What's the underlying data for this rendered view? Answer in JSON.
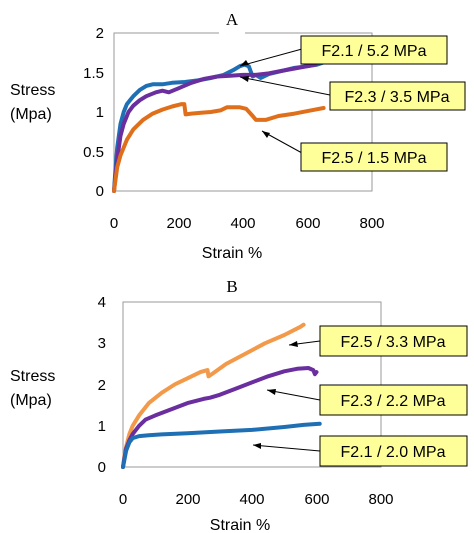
{
  "chart_data": [
    {
      "type": "line",
      "title": "A",
      "xlabel": "Strain %",
      "ylabel": [
        "Stress",
        "(Mpa)"
      ],
      "xlim": [
        0,
        800
      ],
      "ylim": [
        0,
        2
      ],
      "xticks": [
        "0",
        "200",
        "400",
        "600",
        "800"
      ],
      "yticks": [
        "0",
        "0.5",
        "1",
        "1.5",
        "2"
      ],
      "grid": false,
      "series": [
        {
          "name": "F2.1 / 5.2 MPa",
          "color": "#1f6fb4",
          "points": [
            [
              0,
              0
            ],
            [
              5,
              0.3
            ],
            [
              10,
              0.55
            ],
            [
              20,
              0.85
            ],
            [
              30,
              1.0
            ],
            [
              40,
              1.1
            ],
            [
              60,
              1.2
            ],
            [
              80,
              1.28
            ],
            [
              100,
              1.33
            ],
            [
              120,
              1.35
            ],
            [
              150,
              1.35
            ],
            [
              180,
              1.37
            ],
            [
              220,
              1.38
            ],
            [
              260,
              1.4
            ],
            [
              300,
              1.43
            ],
            [
              340,
              1.47
            ],
            [
              370,
              1.53
            ],
            [
              390,
              1.58
            ],
            [
              405,
              1.6
            ],
            [
              418,
              1.58
            ],
            [
              425,
              1.5
            ],
            [
              430,
              1.45
            ],
            [
              440,
              1.47
            ],
            [
              455,
              1.43
            ],
            [
              480,
              1.48
            ],
            [
              520,
              1.52
            ],
            [
              560,
              1.56
            ],
            [
              600,
              1.58
            ],
            [
              630,
              1.6
            ],
            [
              645,
              1.62
            ]
          ]
        },
        {
          "name": "F2.3 / 3.5 MPa",
          "color": "#6a2e9e",
          "points": [
            [
              0,
              0
            ],
            [
              5,
              0.2
            ],
            [
              10,
              0.4
            ],
            [
              20,
              0.7
            ],
            [
              30,
              0.85
            ],
            [
              45,
              1.0
            ],
            [
              60,
              1.08
            ],
            [
              80,
              1.15
            ],
            [
              100,
              1.2
            ],
            [
              130,
              1.25
            ],
            [
              150,
              1.27
            ],
            [
              170,
              1.25
            ],
            [
              200,
              1.3
            ],
            [
              240,
              1.37
            ],
            [
              280,
              1.42
            ],
            [
              320,
              1.45
            ],
            [
              360,
              1.46
            ],
            [
              400,
              1.47
            ],
            [
              440,
              1.47
            ],
            [
              480,
              1.49
            ],
            [
              520,
              1.52
            ],
            [
              560,
              1.55
            ],
            [
              600,
              1.58
            ],
            [
              625,
              1.6
            ]
          ]
        },
        {
          "name": "F2.5 / 1.5 MPa",
          "color": "#e06f1b",
          "points": [
            [
              0,
              0
            ],
            [
              5,
              0.15
            ],
            [
              10,
              0.3
            ],
            [
              20,
              0.45
            ],
            [
              40,
              0.65
            ],
            [
              60,
              0.78
            ],
            [
              90,
              0.9
            ],
            [
              120,
              0.98
            ],
            [
              150,
              1.03
            ],
            [
              180,
              1.07
            ],
            [
              210,
              1.1
            ],
            [
              218,
              1.1
            ],
            [
              222,
              0.97
            ],
            [
              240,
              0.98
            ],
            [
              270,
              0.99
            ],
            [
              300,
              1.0
            ],
            [
              330,
              1.02
            ],
            [
              350,
              1.06
            ],
            [
              390,
              1.06
            ],
            [
              410,
              1.04
            ],
            [
              430,
              0.95
            ],
            [
              440,
              0.9
            ],
            [
              470,
              0.9
            ],
            [
              510,
              0.95
            ],
            [
              560,
              0.98
            ],
            [
              610,
              1.02
            ],
            [
              650,
              1.05
            ]
          ]
        }
      ],
      "annotations": [
        "F2.1 / 5.2 MPa",
        "F2.3 / 3.5 MPa",
        "F2.5 / 1.5 MPa"
      ]
    },
    {
      "type": "line",
      "title": "B",
      "xlabel": "Strain %",
      "ylabel": [
        "Stress",
        "(Mpa)"
      ],
      "xlim": [
        0,
        800
      ],
      "ylim": [
        0,
        4
      ],
      "xticks": [
        "0",
        "200",
        "400",
        "600",
        "800"
      ],
      "yticks": [
        "0",
        "1",
        "2",
        "3",
        "4"
      ],
      "grid": false,
      "series": [
        {
          "name": "F2.5 / 3.3 MPa",
          "color": "#f29a4a",
          "points": [
            [
              0,
              0
            ],
            [
              5,
              0.3
            ],
            [
              10,
              0.5
            ],
            [
              20,
              0.8
            ],
            [
              30,
              1.0
            ],
            [
              50,
              1.25
            ],
            [
              80,
              1.55
            ],
            [
              120,
              1.8
            ],
            [
              160,
              2.0
            ],
            [
              200,
              2.15
            ],
            [
              240,
              2.3
            ],
            [
              262,
              2.35
            ],
            [
              265,
              2.2
            ],
            [
              275,
              2.25
            ],
            [
              320,
              2.5
            ],
            [
              380,
              2.75
            ],
            [
              440,
              3.0
            ],
            [
              500,
              3.2
            ],
            [
              550,
              3.4
            ],
            [
              560,
              3.45
            ]
          ]
        },
        {
          "name": "F2.3 / 2.2 MPa",
          "color": "#6a2e9e",
          "points": [
            [
              0,
              0
            ],
            [
              5,
              0.25
            ],
            [
              10,
              0.45
            ],
            [
              20,
              0.65
            ],
            [
              30,
              0.8
            ],
            [
              50,
              1.0
            ],
            [
              70,
              1.15
            ],
            [
              100,
              1.25
            ],
            [
              150,
              1.4
            ],
            [
              200,
              1.55
            ],
            [
              250,
              1.65
            ],
            [
              270,
              1.68
            ],
            [
              300,
              1.75
            ],
            [
              350,
              1.9
            ],
            [
              400,
              2.05
            ],
            [
              450,
              2.2
            ],
            [
              500,
              2.32
            ],
            [
              540,
              2.38
            ],
            [
              575,
              2.4
            ],
            [
              590,
              2.35
            ],
            [
              595,
              2.25
            ],
            [
              600,
              2.3
            ]
          ]
        },
        {
          "name": "F2.1 / 2.0 MPa",
          "color": "#1f6fb4",
          "points": [
            [
              0,
              0
            ],
            [
              5,
              0.2
            ],
            [
              10,
              0.4
            ],
            [
              20,
              0.6
            ],
            [
              30,
              0.7
            ],
            [
              50,
              0.75
            ],
            [
              80,
              0.77
            ],
            [
              120,
              0.79
            ],
            [
              200,
              0.82
            ],
            [
              300,
              0.86
            ],
            [
              400,
              0.9
            ],
            [
              500,
              0.97
            ],
            [
              560,
              1.02
            ],
            [
              610,
              1.05
            ]
          ]
        }
      ],
      "annotations": [
        "F2.5 / 3.3 MPa",
        "F2.3 / 2.2 MPa",
        "F2.1 / 2.0 MPa"
      ]
    }
  ]
}
